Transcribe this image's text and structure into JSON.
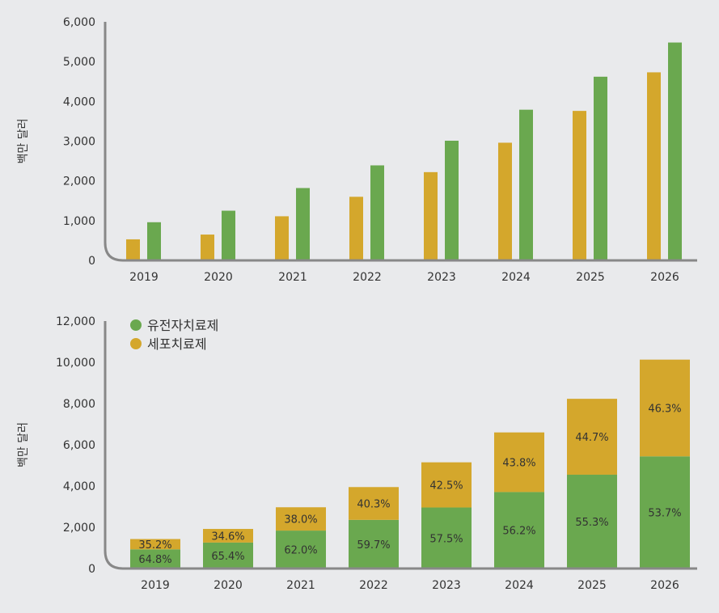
{
  "colors": {
    "gene": "#6aa84f",
    "cell": "#d4a72c",
    "axis": "#888888",
    "text": "#333333",
    "background": "#e9eaec"
  },
  "chart_data": [
    {
      "type": "bar",
      "categories": [
        "2019",
        "2020",
        "2021",
        "2022",
        "2023",
        "2024",
        "2025",
        "2026"
      ],
      "ylabel": "백만 달러",
      "ylim": [
        0,
        6000
      ],
      "yticks": [
        "0",
        "1,000",
        "2,000",
        "3,000",
        "4,000",
        "5,000",
        "6,000"
      ],
      "series": [
        {
          "color": "#d4a72c",
          "values": [
            530,
            650,
            1110,
            1600,
            2220,
            2960,
            3760,
            4730
          ]
        },
        {
          "color": "#6aa84f",
          "values": [
            960,
            1250,
            1820,
            2390,
            3010,
            3790,
            4620,
            5480
          ]
        }
      ]
    },
    {
      "type": "bar",
      "stacked": true,
      "categories": [
        "2019",
        "2020",
        "2021",
        "2022",
        "2023",
        "2024",
        "2025",
        "2026"
      ],
      "ylabel": "백만 달러",
      "ylim": [
        0,
        12000
      ],
      "yticks": [
        "0",
        "2,000",
        "4,000",
        "6,000",
        "8,000",
        "10,000",
        "12,000"
      ],
      "legend_position": "top-left",
      "series": [
        {
          "name": "유전자치료제",
          "color": "#6aa84f",
          "values": [
            930,
            1260,
            1840,
            2360,
            2960,
            3710,
            4550,
            5440
          ],
          "labels": [
            "64.8%",
            "65.4%",
            "62.0%",
            "59.7%",
            "57.5%",
            "56.2%",
            "55.3%",
            "53.7%"
          ]
        },
        {
          "name": "세포치료제",
          "color": "#d4a72c",
          "values": [
            500,
            660,
            1130,
            1590,
            2190,
            2890,
            3680,
            4690
          ],
          "labels": [
            "35.2%",
            "34.6%",
            "38.0%",
            "40.3%",
            "42.5%",
            "43.8%",
            "44.7%",
            "46.3%"
          ]
        }
      ]
    }
  ]
}
